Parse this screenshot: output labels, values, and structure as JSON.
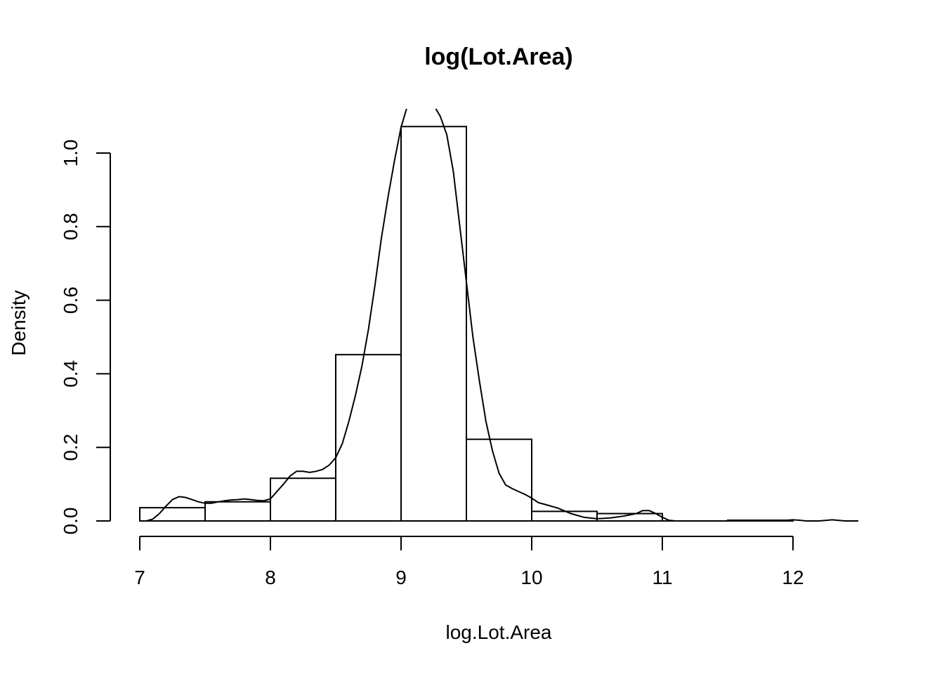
{
  "chart_data": {
    "type": "bar",
    "title": "log(Lot.Area)",
    "xlabel": "log.Lot.Area",
    "ylabel": "Density",
    "xlim": [
      6.78,
      12.52
    ],
    "ylim": [
      0,
      1.1
    ],
    "x_ticks": [
      7,
      8,
      9,
      10,
      11,
      12
    ],
    "x_tick_labels": [
      "7",
      "8",
      "9",
      "10",
      "11",
      "12"
    ],
    "y_ticks": [
      0.0,
      0.2,
      0.4,
      0.6,
      0.8,
      1.0
    ],
    "y_tick_labels": [
      "0.0",
      "0.2",
      "0.4",
      "0.6",
      "0.8",
      "1.0"
    ],
    "bins": [
      {
        "start": 7.0,
        "end": 7.5,
        "density": 0.036
      },
      {
        "start": 7.5,
        "end": 8.0,
        "density": 0.052
      },
      {
        "start": 8.0,
        "end": 8.5,
        "density": 0.116
      },
      {
        "start": 8.5,
        "end": 9.0,
        "density": 0.452
      },
      {
        "start": 9.0,
        "end": 9.5,
        "density": 1.072
      },
      {
        "start": 9.5,
        "end": 10.0,
        "density": 0.222
      },
      {
        "start": 10.0,
        "end": 10.5,
        "density": 0.026
      },
      {
        "start": 10.5,
        "end": 11.0,
        "density": 0.02
      },
      {
        "start": 11.0,
        "end": 11.5,
        "density": 0.0
      },
      {
        "start": 11.5,
        "end": 12.0,
        "density": 0.002
      }
    ],
    "density_curve": {
      "x": [
        7.0,
        7.05,
        7.1,
        7.15,
        7.2,
        7.25,
        7.3,
        7.35,
        7.4,
        7.45,
        7.5,
        7.55,
        7.6,
        7.65,
        7.7,
        7.75,
        7.8,
        7.85,
        7.9,
        7.95,
        8.0,
        8.05,
        8.1,
        8.15,
        8.2,
        8.25,
        8.3,
        8.35,
        8.4,
        8.45,
        8.5,
        8.55,
        8.6,
        8.65,
        8.7,
        8.75,
        8.8,
        8.85,
        8.9,
        8.95,
        9.0,
        9.05,
        9.1,
        9.15,
        9.2,
        9.25,
        9.3,
        9.35,
        9.4,
        9.45,
        9.5,
        9.55,
        9.6,
        9.65,
        9.7,
        9.75,
        9.8,
        9.85,
        9.9,
        9.95,
        10.0,
        10.05,
        10.1,
        10.2,
        10.3,
        10.4,
        10.5,
        10.6,
        10.7,
        10.8,
        10.85,
        10.9,
        10.95,
        11.0,
        11.05,
        11.1,
        11.2,
        11.4,
        11.6,
        11.8,
        11.95,
        12.0,
        12.05,
        12.1,
        12.2,
        12.3,
        12.4,
        12.5
      ],
      "y": [
        0.0,
        0.0,
        0.005,
        0.02,
        0.04,
        0.058,
        0.066,
        0.064,
        0.058,
        0.052,
        0.048,
        0.048,
        0.052,
        0.055,
        0.057,
        0.058,
        0.06,
        0.058,
        0.056,
        0.055,
        0.06,
        0.08,
        0.1,
        0.122,
        0.135,
        0.135,
        0.132,
        0.135,
        0.14,
        0.152,
        0.172,
        0.21,
        0.27,
        0.34,
        0.42,
        0.52,
        0.64,
        0.77,
        0.88,
        0.98,
        1.07,
        1.13,
        1.17,
        1.18,
        1.16,
        1.13,
        1.1,
        1.05,
        0.95,
        0.8,
        0.65,
        0.5,
        0.38,
        0.27,
        0.19,
        0.13,
        0.098,
        0.088,
        0.08,
        0.072,
        0.062,
        0.05,
        0.045,
        0.035,
        0.02,
        0.01,
        0.006,
        0.008,
        0.013,
        0.02,
        0.028,
        0.028,
        0.02,
        0.01,
        0.002,
        0.0,
        0.0,
        0.0,
        0.0,
        0.0,
        0.002,
        0.003,
        0.002,
        0.0,
        0.0,
        0.003,
        0.0,
        0.0
      ]
    },
    "grid": false,
    "legend": "none"
  }
}
